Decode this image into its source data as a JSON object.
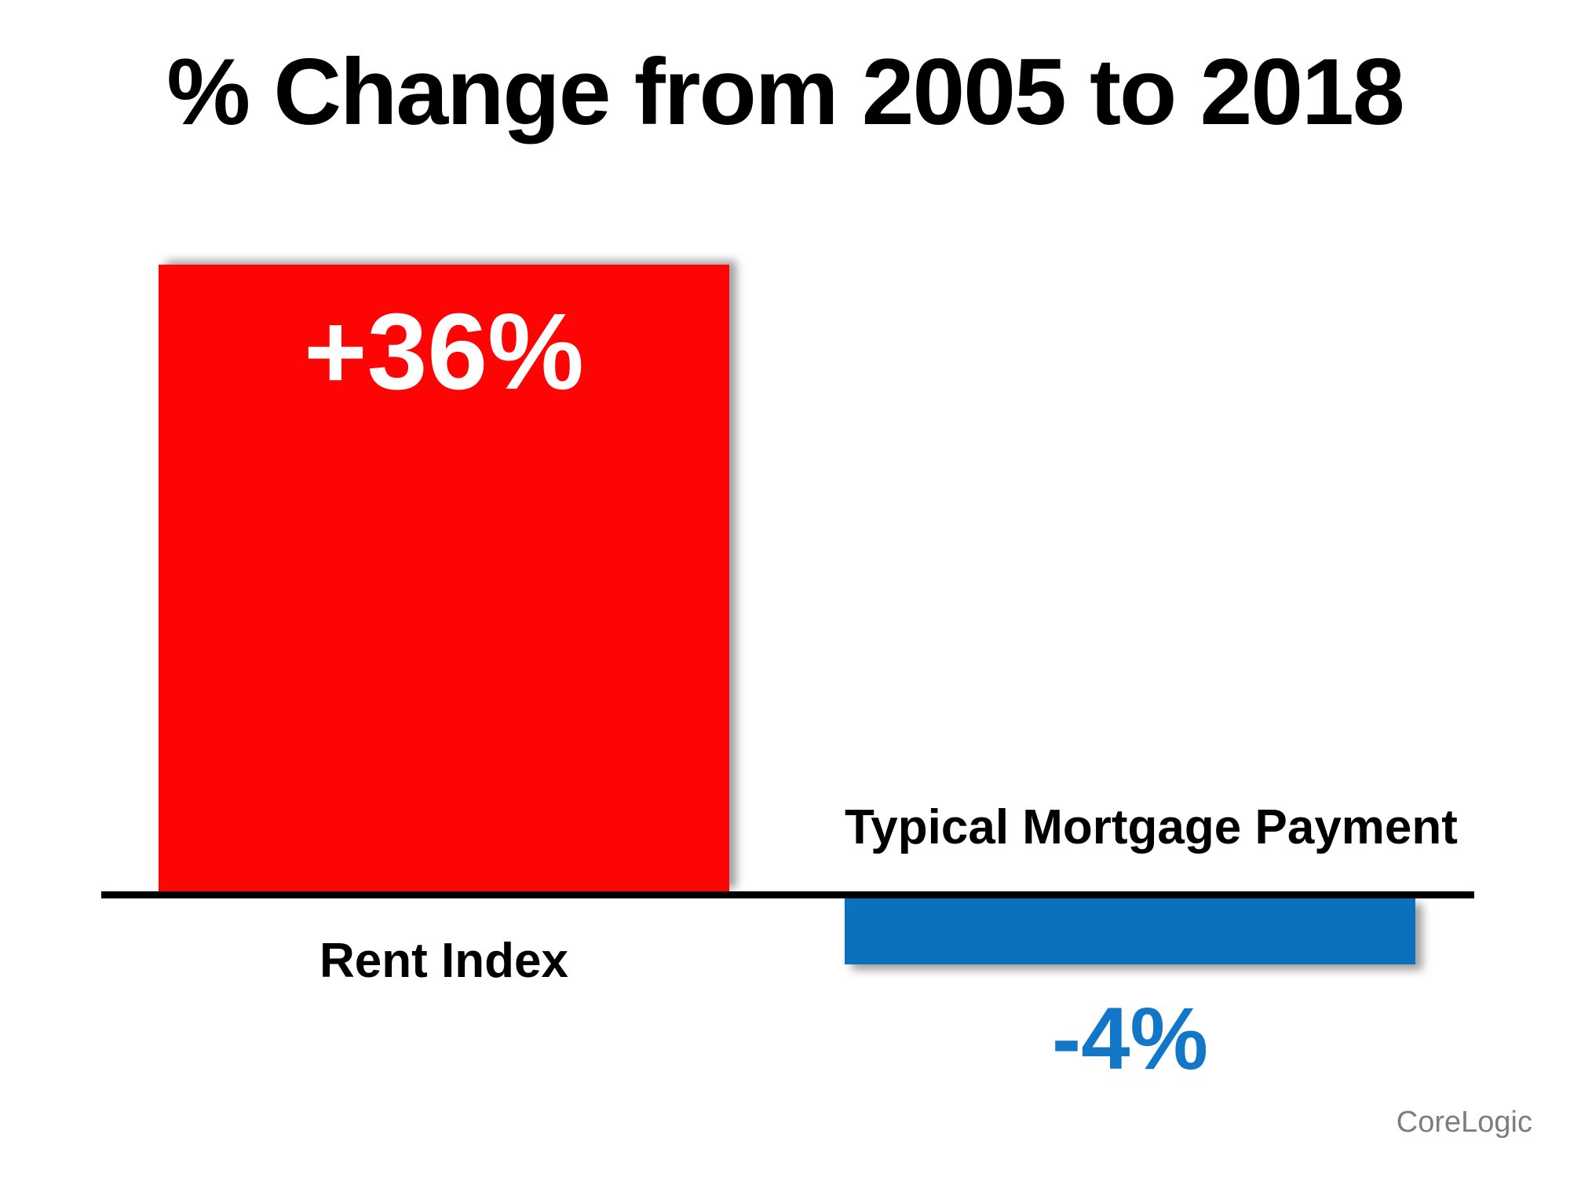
{
  "title": "% Change from 2005 to 2018",
  "source": "CoreLogic",
  "chart_data": {
    "type": "bar",
    "title": "% Change from 2005 to 2018",
    "categories": [
      "Rent Index",
      "Typical Mortgage Payment"
    ],
    "values": [
      36,
      -4
    ],
    "value_labels": [
      "+36%",
      "-4%"
    ],
    "series_colors": [
      "#fe0404",
      "#0b71bd"
    ],
    "value_label_colors": [
      "#ffffff",
      "#1276c9"
    ],
    "baseline": 0,
    "axis_line_color": "#000000",
    "grid": false,
    "legend": false,
    "xlabel": "",
    "ylabel": "",
    "source": "CoreLogic"
  }
}
